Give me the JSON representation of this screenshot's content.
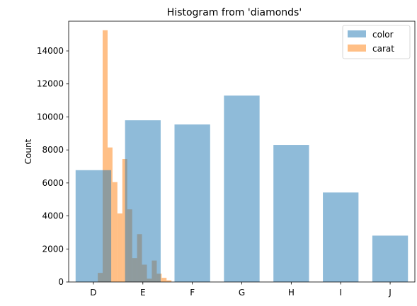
{
  "chart_data": {
    "type": "bar",
    "title": "Histogram from 'diamonds'",
    "xlabel": "",
    "ylabel": "Count",
    "ylim": [
      0,
      15800
    ],
    "yticks": [
      0,
      2000,
      4000,
      6000,
      8000,
      10000,
      12000,
      14000
    ],
    "categories": [
      "D",
      "E",
      "F",
      "G",
      "H",
      "I",
      "J"
    ],
    "grid": false,
    "legend_position": "top-right",
    "series": [
      {
        "name": "color",
        "color": "#1f77b4",
        "alpha": 0.5,
        "values": [
          6775,
          9797,
          9542,
          11292,
          8304,
          5422,
          2808
        ]
      },
      {
        "name": "carat",
        "color": "#ff7f0e",
        "alpha": 0.5,
        "bins": [
          {
            "x0": 0.088,
            "x1": 0.187,
            "count": 550
          },
          {
            "x0": 0.187,
            "x1": 0.287,
            "count": 15250
          },
          {
            "x0": 0.287,
            "x1": 0.386,
            "count": 8150
          },
          {
            "x0": 0.386,
            "x1": 0.485,
            "count": 6050
          },
          {
            "x0": 0.485,
            "x1": 0.585,
            "count": 4150
          },
          {
            "x0": 0.585,
            "x1": 0.684,
            "count": 7450
          },
          {
            "x0": 0.684,
            "x1": 0.784,
            "count": 4400
          },
          {
            "x0": 0.784,
            "x1": 0.883,
            "count": 1450
          },
          {
            "x0": 0.883,
            "x1": 0.982,
            "count": 2900
          },
          {
            "x0": 0.982,
            "x1": 1.082,
            "count": 1050
          },
          {
            "x0": 1.082,
            "x1": 1.181,
            "count": 200
          },
          {
            "x0": 1.181,
            "x1": 1.281,
            "count": 1300
          },
          {
            "x0": 1.281,
            "x1": 1.38,
            "count": 500
          },
          {
            "x0": 1.38,
            "x1": 1.479,
            "count": 250
          },
          {
            "x0": 1.479,
            "x1": 1.579,
            "count": 100
          }
        ]
      }
    ]
  }
}
